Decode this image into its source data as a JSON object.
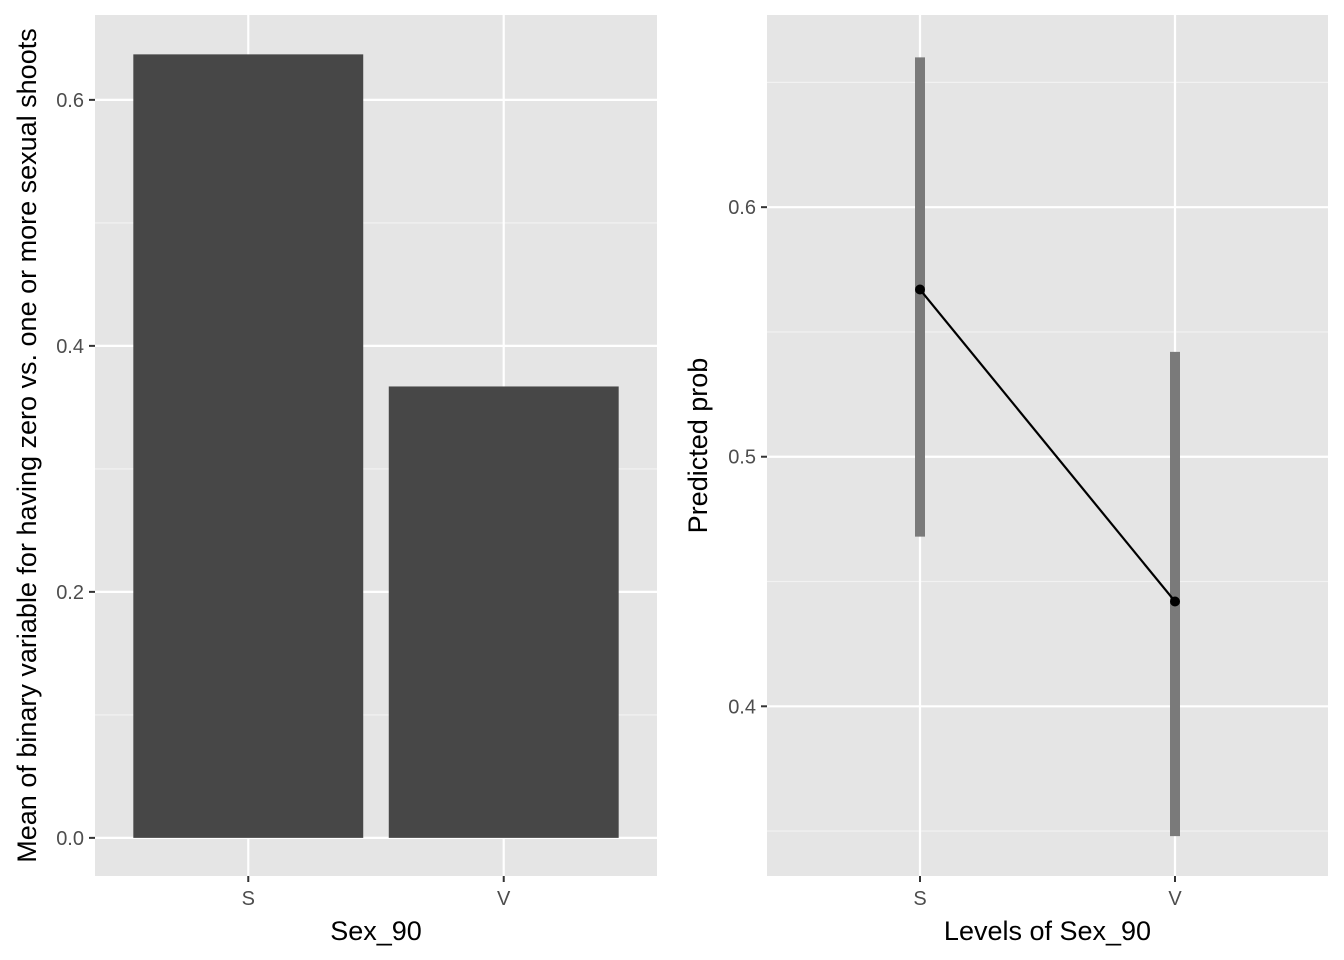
{
  "chart_data": [
    {
      "type": "bar",
      "categories": [
        "S",
        "V"
      ],
      "values": [
        0.637,
        0.367
      ],
      "title": "",
      "xlabel": "Sex_90",
      "ylabel": "Mean of binary variable for having zero vs. one or more sexual shoots",
      "ylim": [
        -0.031,
        0.669
      ],
      "yticks": [
        0.0,
        0.2,
        0.4,
        0.6
      ],
      "ytick_labels": [
        "0.0",
        "0.2",
        "0.4",
        "0.6"
      ],
      "grid": true,
      "bar_color": "#474747",
      "panel_color": "#e5e5e5"
    },
    {
      "type": "line",
      "categories": [
        "S",
        "V"
      ],
      "values": [
        0.567,
        0.442
      ],
      "ci_low": [
        0.468,
        0.348
      ],
      "ci_high": [
        0.66,
        0.542
      ],
      "title": "",
      "xlabel": "Levels of Sex_90",
      "ylabel": "Predicted prob",
      "ylim": [
        0.332,
        0.677
      ],
      "yticks": [
        0.4,
        0.5,
        0.6
      ],
      "ytick_labels": [
        "0.4",
        "0.5",
        "0.6"
      ],
      "grid": true,
      "errorbar_color": "#7a7a7a",
      "line_color": "#000000",
      "panel_color": "#e5e5e5"
    }
  ]
}
